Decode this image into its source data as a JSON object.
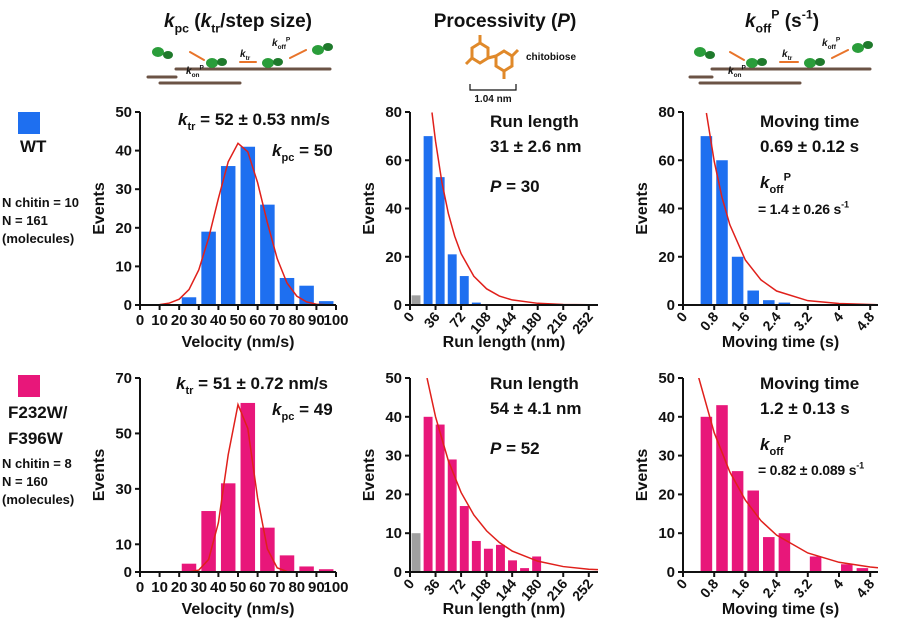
{
  "column_headers": [
    [
      {
        "text": "k",
        "style": "italic"
      },
      {
        "text": "pc",
        "style": "sub"
      },
      {
        "text": " ("
      },
      {
        "text": "k",
        "style": "italic"
      },
      {
        "text": "tr",
        "style": "sub"
      },
      {
        "text": "/step size)"
      }
    ],
    [
      {
        "text": "Processivity ("
      },
      {
        "text": "P",
        "style": "italic"
      },
      {
        "text": ")"
      }
    ],
    [
      {
        "text": "k",
        "style": "italic"
      },
      {
        "text": "off",
        "style": "sub"
      },
      {
        "text": "P",
        "style": "sup"
      },
      {
        "text": " (s"
      },
      {
        "text": "-1",
        "style": "sup"
      },
      {
        "text": ")"
      }
    ]
  ],
  "schematics": {
    "left": [
      {
        "color": "#111111",
        "segments": [
          {
            "text": "k",
            "style": "italic"
          },
          {
            "text": "on",
            "style": "sub"
          },
          {
            "text": "P",
            "style": "sup"
          }
        ]
      },
      {
        "color": "#e8201c",
        "segments": [
          {
            "text": "k",
            "style": "italic"
          },
          {
            "text": "tr",
            "style": "sub"
          }
        ]
      },
      {
        "color": "#111111",
        "segments": [
          {
            "text": "k",
            "style": "italic"
          },
          {
            "text": "off",
            "style": "sub"
          },
          {
            "text": "P",
            "style": "sup"
          }
        ]
      }
    ],
    "middle": {
      "label": "chitobiose",
      "scale": "1.04 nm"
    },
    "right": [
      {
        "color": "#111111",
        "segments": [
          {
            "text": "k",
            "style": "italic"
          },
          {
            "text": "on",
            "style": "sub"
          },
          {
            "text": "P",
            "style": "sup"
          }
        ]
      },
      {
        "color": "#111111",
        "segments": [
          {
            "text": "k",
            "style": "italic"
          },
          {
            "text": "tr",
            "style": "sub"
          }
        ]
      },
      {
        "color": "#e8201c",
        "segments": [
          {
            "text": "k",
            "style": "italic"
          },
          {
            "text": "off",
            "style": "sub"
          },
          {
            "text": "P",
            "style": "sup"
          }
        ]
      }
    ]
  },
  "rows": [
    {
      "label": [
        "WT"
      ],
      "color": "#1e6ff0",
      "details": [
        "N chitin = 10",
        "N = 161",
        "(molecules)"
      ]
    },
    {
      "label": [
        "F232W/",
        "F396W"
      ],
      "color": "#e8177a",
      "details": [
        "N chitin = 8",
        "N = 160",
        "(molecules)"
      ]
    }
  ],
  "chart_data": [
    {
      "type": "histogram",
      "bins": [
        20,
        30,
        40,
        50,
        60,
        70,
        80,
        90,
        100
      ],
      "values": [
        2,
        19,
        36,
        41,
        26,
        7,
        5,
        1
      ],
      "colors": [
        "#1e6ff0",
        "#1e6ff0",
        "#1e6ff0",
        "#1e6ff0",
        "#1e6ff0",
        "#1e6ff0",
        "#1e6ff0",
        "#1e6ff0"
      ],
      "xlim": [
        0,
        100
      ],
      "xticks": [
        0,
        10,
        20,
        30,
        40,
        50,
        60,
        70,
        80,
        90,
        100
      ],
      "ylim": [
        0,
        50
      ],
      "yticks": [
        0,
        10,
        20,
        30,
        40,
        50
      ],
      "x_label": "Velocity (nm/s)",
      "y_label": "Events",
      "fit": {
        "color": "#e0201b",
        "x": [
          10,
          15,
          20,
          25,
          30,
          35,
          40,
          45,
          50,
          55,
          60,
          65,
          70,
          75,
          80,
          85,
          90,
          95
        ],
        "values": [
          0.1,
          0.5,
          1.5,
          4.0,
          9.1,
          17.3,
          27.6,
          37.1,
          41.9,
          39.7,
          31.7,
          21.3,
          12.0,
          5.7,
          2.3,
          0.8,
          0.2,
          0.05
        ]
      },
      "annotations": [
        {
          "color": "#111111",
          "segments": [
            {
              "text": "k",
              "style": "italic"
            },
            {
              "text": "tr",
              "style": "sub"
            },
            {
              "text": " = 52 ± 0.53 nm/s"
            }
          ]
        },
        {
          "color": "#e8201c",
          "segments": [
            {
              "text": "k",
              "style": "italic"
            },
            {
              "text": "pc",
              "style": "sub"
            },
            {
              "text": " = 50"
            }
          ]
        }
      ]
    },
    {
      "type": "histogram",
      "bins": [
        0,
        17,
        34,
        51,
        68,
        85,
        102
      ],
      "values": [
        4,
        70,
        53,
        21,
        12,
        1
      ],
      "colors": [
        "#a0a0a0",
        "#1e6ff0",
        "#1e6ff0",
        "#1e6ff0",
        "#1e6ff0",
        "#1e6ff0"
      ],
      "xlim": [
        0,
        265
      ],
      "xticks": [
        0,
        36,
        72,
        108,
        144,
        180,
        216,
        252
      ],
      "ylim": [
        0,
        80
      ],
      "yticks": [
        0,
        20,
        40,
        60,
        80
      ],
      "x_label": "Run length (nm)",
      "y_label": "Events",
      "fit": {
        "color": "#e0201b",
        "x": [
          31,
          36,
          45,
          54,
          63,
          72,
          90,
          108,
          126,
          144,
          180,
          216,
          252,
          260
        ],
        "values": [
          79.8,
          67.9,
          50.8,
          38.0,
          28.5,
          21.3,
          11.9,
          6.7,
          3.7,
          2.1,
          0.7,
          0.2,
          0.1,
          0.05
        ]
      },
      "annotations": [
        {
          "color": "#111111",
          "segments": [
            {
              "text": "Run length"
            }
          ]
        },
        {
          "color": "#111111",
          "segments": [
            {
              "text": "31 ± 2.6 nm"
            }
          ]
        },
        {
          "color": "#e8201c",
          "segments": [
            {
              "text": "P",
              "style": "italic"
            },
            {
              "text": " = 30"
            }
          ]
        }
      ]
    },
    {
      "type": "histogram",
      "bins": [
        0.4,
        0.8,
        1.2,
        1.6,
        2,
        2.4,
        2.8
      ],
      "values": [
        70,
        60,
        20,
        6,
        2,
        1
      ],
      "colors": [
        "#1e6ff0",
        "#1e6ff0",
        "#1e6ff0",
        "#1e6ff0",
        "#1e6ff0",
        "#1e6ff0"
      ],
      "xlim": [
        0,
        5
      ],
      "xticks": [
        0,
        0.8,
        1.6,
        2.4,
        3.2,
        4,
        4.8
      ],
      "ylim": [
        0,
        80
      ],
      "yticks": [
        0,
        20,
        40,
        60,
        80
      ],
      "x_label": "Moving time (s)",
      "y_label": "Events",
      "fit": {
        "color": "#e0201b",
        "x": [
          0.6,
          0.8,
          1,
          1.2,
          1.6,
          2,
          2.4,
          3.2,
          4,
          4.8,
          5
        ],
        "values": [
          79.6,
          59.6,
          44.6,
          33.3,
          18.6,
          10.4,
          5.8,
          1.8,
          0.6,
          0.2,
          0.1
        ]
      },
      "annotations": [
        {
          "color": "#111111",
          "segments": [
            {
              "text": "Moving time"
            }
          ]
        },
        {
          "color": "#111111",
          "segments": [
            {
              "text": "0.69 ± 0.12 s"
            }
          ]
        },
        {
          "color": "#e8201c",
          "segments": [
            {
              "text": "k",
              "style": "italic"
            },
            {
              "text": "off",
              "style": "sub"
            },
            {
              "text": "P",
              "style": "sup"
            }
          ]
        },
        {
          "color": "#e8201c",
          "segments": [
            {
              "text": "= 1.4 ± 0.26 s"
            },
            {
              "text": "-1",
              "style": "sup"
            }
          ]
        }
      ]
    },
    {
      "type": "histogram",
      "bins": [
        20,
        30,
        40,
        50,
        60,
        70,
        80,
        90,
        100
      ],
      "values": [
        3,
        22,
        32,
        61,
        16,
        6,
        2,
        1
      ],
      "colors": [
        "#e8177a",
        "#e8177a",
        "#e8177a",
        "#e8177a",
        "#e8177a",
        "#e8177a",
        "#e8177a",
        "#e8177a"
      ],
      "xlim": [
        0,
        100
      ],
      "xticks": [
        0,
        10,
        20,
        30,
        40,
        50,
        60,
        70,
        80,
        90,
        100
      ],
      "ylim": [
        0,
        70
      ],
      "yticks": [
        0,
        10,
        30,
        50,
        70
      ],
      "x_label": "Velocity (nm/s)",
      "y_label": "Events",
      "fit": {
        "color": "#e0201b",
        "x": [
          25,
          30,
          35,
          40,
          45,
          50,
          55,
          60,
          65,
          70,
          75,
          80
        ],
        "values": [
          0.06,
          0.7,
          4.5,
          17.8,
          42.3,
          60.4,
          51.8,
          26.7,
          8.3,
          1.5,
          0.2,
          0.02
        ]
      },
      "annotations": [
        {
          "color": "#111111",
          "segments": [
            {
              "text": "k",
              "style": "italic"
            },
            {
              "text": "tr",
              "style": "sub"
            },
            {
              "text": " = 51 ± 0.72 nm/s"
            }
          ]
        },
        {
          "color": "#e8201c",
          "segments": [
            {
              "text": "k",
              "style": "italic"
            },
            {
              "text": "pc",
              "style": "sub"
            },
            {
              "text": " = 49"
            }
          ]
        }
      ]
    },
    {
      "type": "histogram",
      "bins": [
        0,
        17,
        34,
        51,
        68,
        85,
        102,
        119,
        136,
        153,
        170,
        187
      ],
      "values": [
        10,
        40,
        38,
        29,
        17,
        8,
        6,
        7,
        3,
        1,
        4
      ],
      "colors": [
        "#a0a0a0",
        "#e8177a",
        "#e8177a",
        "#e8177a",
        "#e8177a",
        "#e8177a",
        "#e8177a",
        "#e8177a",
        "#e8177a",
        "#e8177a",
        "#e8177a"
      ],
      "xlim": [
        0,
        265
      ],
      "xticks": [
        0,
        36,
        72,
        108,
        144,
        180,
        216,
        252
      ],
      "ylim": [
        0,
        50
      ],
      "yticks": [
        0,
        10,
        20,
        30,
        40,
        50
      ],
      "x_label": "Run length (nm)",
      "y_label": "Events",
      "fit": {
        "color": "#e0201b",
        "x": [
          24,
          36,
          54,
          72,
          90,
          108,
          126,
          144,
          180,
          216,
          252,
          265
        ],
        "values": [
          50.0,
          40.0,
          28.7,
          20.5,
          14.7,
          10.6,
          7.6,
          5.4,
          2.8,
          1.4,
          0.7,
          0.6
        ]
      },
      "annotations": [
        {
          "color": "#111111",
          "segments": [
            {
              "text": "Run length"
            }
          ]
        },
        {
          "color": "#111111",
          "segments": [
            {
              "text": "54 ± 4.1 nm"
            }
          ]
        },
        {
          "color": "#e8201c",
          "segments": [
            {
              "text": "P",
              "style": "italic"
            },
            {
              "text": " = 52"
            }
          ]
        }
      ]
    },
    {
      "type": "histogram",
      "bins": [
        0.4,
        0.8,
        1.2,
        1.6,
        2,
        2.4,
        2.8,
        3.2,
        3.6,
        4,
        4.4,
        4.8
      ],
      "values": [
        40,
        43,
        26,
        21,
        9,
        10,
        0,
        4,
        0,
        2,
        1
      ],
      "colors": [
        "#e8177a",
        "#e8177a",
        "#e8177a",
        "#e8177a",
        "#e8177a",
        "#e8177a",
        "#e8177a",
        "#e8177a",
        "#e8177a",
        "#e8177a",
        "#e8177a"
      ],
      "xlim": [
        0,
        5
      ],
      "xticks": [
        0,
        0.8,
        1.6,
        2.4,
        3.2,
        4,
        4.8
      ],
      "ylim": [
        0,
        50
      ],
      "yticks": [
        0,
        10,
        20,
        30,
        40,
        50
      ],
      "x_label": "Moving time (s)",
      "y_label": "Events",
      "fit": {
        "color": "#e0201b",
        "x": [
          0.4,
          0.8,
          1.2,
          1.6,
          2,
          2.4,
          3.2,
          4,
          4.8,
          5
        ],
        "values": [
          50.2,
          35.9,
          25.8,
          18.5,
          13.2,
          9.5,
          4.9,
          2.5,
          1.3,
          1.1
        ]
      },
      "annotations": [
        {
          "color": "#111111",
          "segments": [
            {
              "text": "Moving time"
            }
          ]
        },
        {
          "color": "#111111",
          "segments": [
            {
              "text": "1.2 ± 0.13 s"
            }
          ]
        },
        {
          "color": "#e8201c",
          "segments": [
            {
              "text": "k",
              "style": "italic"
            },
            {
              "text": "off",
              "style": "sub"
            },
            {
              "text": "P",
              "style": "sup"
            }
          ]
        },
        {
          "color": "#e8201c",
          "segments": [
            {
              "text": "= 0.82 ± 0.089 s"
            },
            {
              "text": "-1",
              "style": "sup"
            }
          ]
        }
      ]
    }
  ]
}
